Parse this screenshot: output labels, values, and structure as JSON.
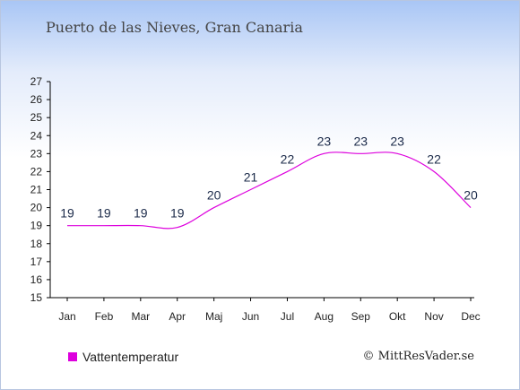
{
  "title": "Puerto de las Nieves, Gran Canaria",
  "legend": {
    "label": "Vattentemperatur",
    "color": "#dd00dd"
  },
  "copyright": "© MittResVader.se",
  "chart_data": {
    "type": "line",
    "categories": [
      "Jan",
      "Feb",
      "Mar",
      "Apr",
      "Maj",
      "Jun",
      "Jul",
      "Aug",
      "Sep",
      "Okt",
      "Nov",
      "Dec"
    ],
    "series": [
      {
        "name": "Vattentemperatur",
        "color": "#dd00dd",
        "values": [
          19,
          19,
          19,
          19,
          20,
          21,
          22,
          23,
          23,
          23,
          22,
          20
        ]
      }
    ],
    "curve_values": [
      19,
      19,
      19,
      18.9,
      20,
      21,
      22,
      23,
      23,
      23,
      22,
      20
    ],
    "ylim": [
      15,
      27
    ],
    "yticks": [
      15,
      16,
      17,
      18,
      19,
      20,
      21,
      22,
      23,
      24,
      25,
      26,
      27
    ],
    "title": "",
    "xlabel": "",
    "ylabel": "",
    "grid": false,
    "legend_position": "bottom-left"
  }
}
